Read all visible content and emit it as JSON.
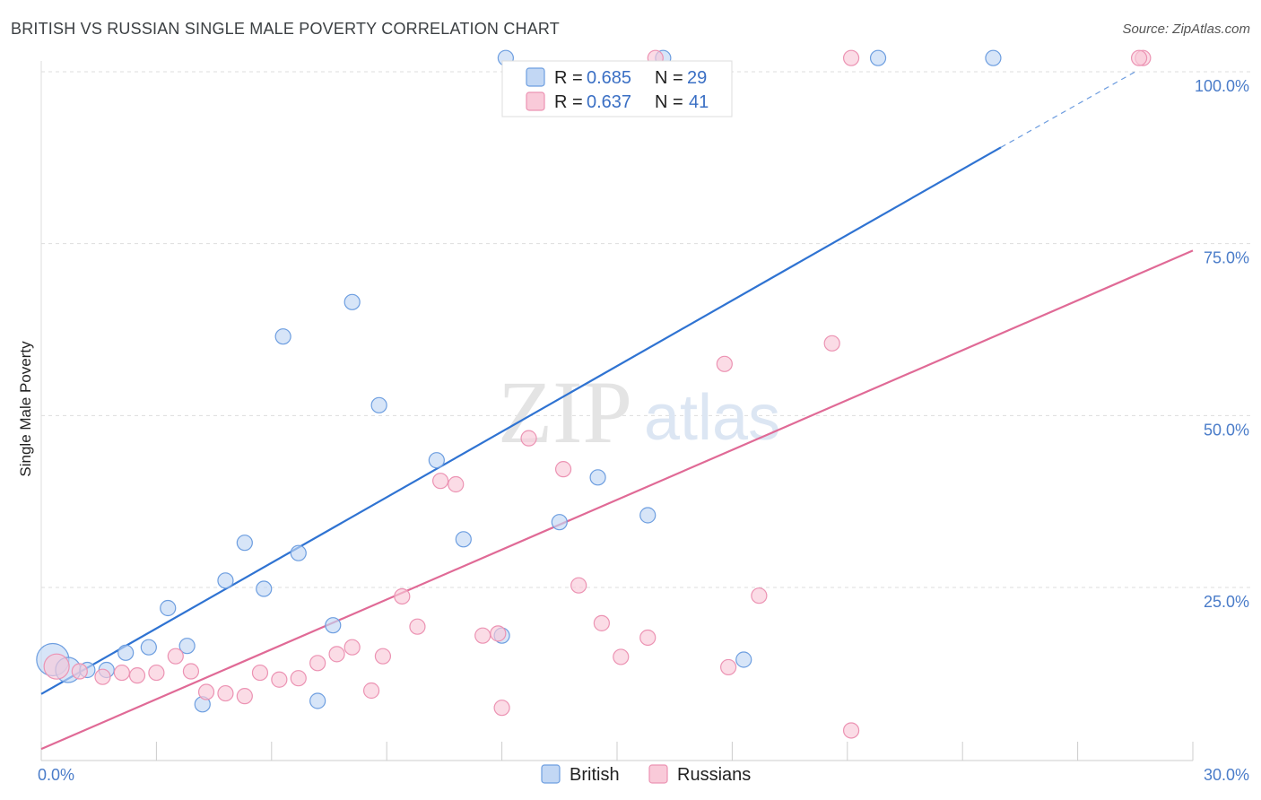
{
  "title": "BRITISH VS RUSSIAN SINGLE MALE POVERTY CORRELATION CHART",
  "source": "Source: ZipAtlas.com",
  "watermark": {
    "part1": "ZIP",
    "part2": "atlas"
  },
  "colors": {
    "british": "#2f73d2",
    "british_fill": "#c2d7f4",
    "russians": "#e06a96",
    "russians_fill": "#f9cad9",
    "grid": "#dddddd",
    "tick_label": "#4a7cc9"
  },
  "chart_data": {
    "type": "scatter",
    "title": "BRITISH VS RUSSIAN SINGLE MALE POVERTY CORRELATION CHART",
    "xlabel": "",
    "ylabel": "Single Male Poverty",
    "xlim": [
      0,
      30
    ],
    "ylim": [
      0,
      102
    ],
    "x_tick_labels": [
      {
        "value": 0,
        "label": "0.0%"
      },
      {
        "value": 30,
        "label": "30.0%"
      }
    ],
    "y_tick_labels": [
      {
        "value": 25,
        "label": "25.0%"
      },
      {
        "value": 50,
        "label": "50.0%"
      },
      {
        "value": 75,
        "label": "75.0%"
      },
      {
        "value": 100,
        "label": "100.0%"
      }
    ],
    "grid": true,
    "legend": {
      "position": "top-center",
      "entries": [
        {
          "series": "British",
          "r_label": "R =",
          "r": "0.685",
          "n_label": "N =",
          "n": "29"
        },
        {
          "series": "Russians",
          "r_label": "R =",
          "r": "0.637",
          "n_label": "N =",
          "n": "41"
        }
      ]
    },
    "bottom_legend": [
      "British",
      "Russians"
    ],
    "series": [
      {
        "name": "British",
        "trend": {
          "x0": 0,
          "y0": 9.5,
          "x1": 25,
          "y1": 89,
          "dash_to_x": 28.5,
          "dash_to_y": 100
        },
        "points": [
          {
            "x": 0.3,
            "y": 14.5,
            "size": "large"
          },
          {
            "x": 0.7,
            "y": 13.0,
            "size": "medium"
          },
          {
            "x": 1.2,
            "y": 13.0
          },
          {
            "x": 1.7,
            "y": 13.0
          },
          {
            "x": 2.2,
            "y": 15.5
          },
          {
            "x": 2.8,
            "y": 16.3
          },
          {
            "x": 3.3,
            "y": 22.0
          },
          {
            "x": 3.8,
            "y": 16.5
          },
          {
            "x": 4.2,
            "y": 8.0
          },
          {
            "x": 4.8,
            "y": 26.0
          },
          {
            "x": 5.3,
            "y": 31.5
          },
          {
            "x": 5.8,
            "y": 24.8
          },
          {
            "x": 6.3,
            "y": 61.5
          },
          {
            "x": 6.7,
            "y": 30.0
          },
          {
            "x": 7.2,
            "y": 8.5
          },
          {
            "x": 7.6,
            "y": 19.5
          },
          {
            "x": 8.1,
            "y": 66.5
          },
          {
            "x": 8.8,
            "y": 51.5
          },
          {
            "x": 10.3,
            "y": 43.5
          },
          {
            "x": 11.0,
            "y": 32.0
          },
          {
            "x": 12.0,
            "y": 18.0
          },
          {
            "x": 12.1,
            "y": 102.0
          },
          {
            "x": 13.5,
            "y": 34.5
          },
          {
            "x": 14.5,
            "y": 41.0
          },
          {
            "x": 16.2,
            "y": 102.0
          },
          {
            "x": 15.8,
            "y": 35.5
          },
          {
            "x": 18.3,
            "y": 14.5
          },
          {
            "x": 21.8,
            "y": 102.0
          },
          {
            "x": 24.8,
            "y": 102.0
          }
        ]
      },
      {
        "name": "Russians",
        "trend": {
          "x0": 0,
          "y0": 1.5,
          "x1": 30,
          "y1": 74
        },
        "points": [
          {
            "x": 0.4,
            "y": 13.5,
            "size": "medium"
          },
          {
            "x": 1.0,
            "y": 12.8
          },
          {
            "x": 1.6,
            "y": 12.0
          },
          {
            "x": 2.1,
            "y": 12.6
          },
          {
            "x": 2.5,
            "y": 12.2
          },
          {
            "x": 3.0,
            "y": 12.6
          },
          {
            "x": 3.5,
            "y": 15.0
          },
          {
            "x": 3.9,
            "y": 12.8
          },
          {
            "x": 4.3,
            "y": 9.8
          },
          {
            "x": 4.8,
            "y": 9.6
          },
          {
            "x": 5.3,
            "y": 9.2
          },
          {
            "x": 5.7,
            "y": 12.6
          },
          {
            "x": 6.2,
            "y": 11.6
          },
          {
            "x": 6.7,
            "y": 11.8
          },
          {
            "x": 7.2,
            "y": 14.0
          },
          {
            "x": 7.7,
            "y": 15.3
          },
          {
            "x": 8.1,
            "y": 16.3
          },
          {
            "x": 8.6,
            "y": 10.0
          },
          {
            "x": 8.9,
            "y": 15.0
          },
          {
            "x": 9.4,
            "y": 23.7
          },
          {
            "x": 9.8,
            "y": 19.3
          },
          {
            "x": 10.4,
            "y": 40.5
          },
          {
            "x": 10.8,
            "y": 40.0
          },
          {
            "x": 11.5,
            "y": 18.0
          },
          {
            "x": 11.9,
            "y": 18.3
          },
          {
            "x": 12.0,
            "y": 7.5
          },
          {
            "x": 12.7,
            "y": 46.7
          },
          {
            "x": 13.6,
            "y": 42.2
          },
          {
            "x": 14.0,
            "y": 25.3
          },
          {
            "x": 14.6,
            "y": 19.8
          },
          {
            "x": 15.1,
            "y": 14.9
          },
          {
            "x": 15.8,
            "y": 17.7
          },
          {
            "x": 16.0,
            "y": 102.0
          },
          {
            "x": 17.8,
            "y": 57.5
          },
          {
            "x": 17.9,
            "y": 13.4
          },
          {
            "x": 18.7,
            "y": 23.8
          },
          {
            "x": 20.6,
            "y": 60.5
          },
          {
            "x": 21.1,
            "y": 102.0
          },
          {
            "x": 21.1,
            "y": 4.2
          },
          {
            "x": 28.7,
            "y": 102.0
          },
          {
            "x": 28.6,
            "y": 102.0
          }
        ]
      }
    ]
  }
}
